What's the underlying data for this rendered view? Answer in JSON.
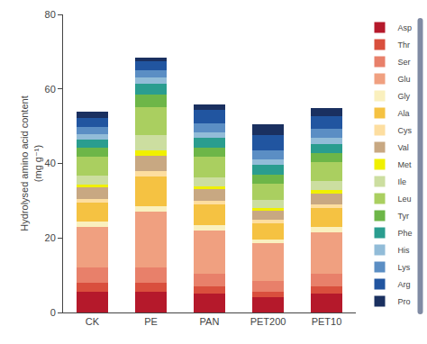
{
  "chart_data": {
    "type": "bar",
    "stacked": true,
    "categories": [
      "CK",
      "PE",
      "PAN",
      "PET200",
      "PET10"
    ],
    "series": [
      {
        "name": "Asp",
        "color": "#B5192B",
        "values": [
          5.5,
          5.5,
          5.0,
          4.0,
          5.0
        ]
      },
      {
        "name": "Thr",
        "color": "#D94F3D",
        "values": [
          2.5,
          2.5,
          2.0,
          1.5,
          2.0
        ]
      },
      {
        "name": "Ser",
        "color": "#E8806A",
        "values": [
          4.0,
          4.0,
          3.5,
          3.0,
          3.5
        ]
      },
      {
        "name": "Glu",
        "color": "#F0A080",
        "values": [
          11.0,
          15.0,
          11.5,
          10.0,
          11.0
        ]
      },
      {
        "name": "Gly",
        "color": "#FAF0BE",
        "values": [
          1.5,
          1.5,
          1.5,
          1.0,
          1.5
        ]
      },
      {
        "name": "Ala",
        "color": "#F5C242",
        "values": [
          5.0,
          8.0,
          5.5,
          4.5,
          5.0
        ]
      },
      {
        "name": "Cys",
        "color": "#FDDEA0",
        "values": [
          1.0,
          1.5,
          1.0,
          0.8,
          1.0
        ]
      },
      {
        "name": "Val",
        "color": "#C8A882",
        "values": [
          3.0,
          4.0,
          3.0,
          2.5,
          3.0
        ]
      },
      {
        "name": "Met",
        "color": "#F0F000",
        "values": [
          0.8,
          1.5,
          0.8,
          0.8,
          0.8
        ]
      },
      {
        "name": "Ile",
        "color": "#CCDEA0",
        "values": [
          2.5,
          4.0,
          2.5,
          2.0,
          2.5
        ]
      },
      {
        "name": "Leu",
        "color": "#AACF60",
        "values": [
          5.0,
          7.5,
          5.5,
          4.5,
          5.0
        ]
      },
      {
        "name": "Tyr",
        "color": "#6DB648",
        "values": [
          2.5,
          3.5,
          2.5,
          2.5,
          2.5
        ]
      },
      {
        "name": "Phe",
        "color": "#2A9D8F",
        "values": [
          2.0,
          3.0,
          2.5,
          2.5,
          2.5
        ]
      },
      {
        "name": "His",
        "color": "#92BCD8",
        "values": [
          1.5,
          1.5,
          1.5,
          1.5,
          1.5
        ]
      },
      {
        "name": "Lys",
        "color": "#5B8EC4",
        "values": [
          2.0,
          2.0,
          2.5,
          2.5,
          2.5
        ]
      },
      {
        "name": "Arg",
        "color": "#2155A0",
        "values": [
          2.5,
          2.5,
          3.5,
          4.0,
          3.5
        ]
      },
      {
        "name": "Pro",
        "color": "#1A3060",
        "values": [
          1.5,
          1.0,
          1.5,
          3.0,
          2.0
        ]
      }
    ],
    "ylabel": "Hydrolysed amino acid content\n(mg g⁻¹)",
    "ylim": [
      0,
      80
    ],
    "yticks": [
      0,
      20,
      40,
      60,
      80
    ],
    "grid": false,
    "legend": "right"
  }
}
